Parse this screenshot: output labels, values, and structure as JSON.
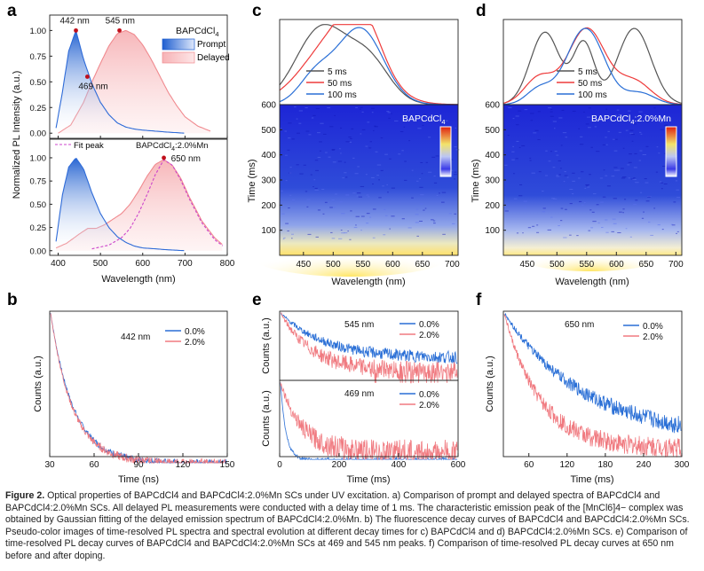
{
  "figure": {
    "panel_letters": {
      "a": "a",
      "b": "b",
      "c": "c",
      "d": "d",
      "e": "e",
      "f": "f"
    },
    "caption": {
      "label": "Figure 2.",
      "text": "Optical properties of BAPCdCl4 and BAPCdCl4:2.0%Mn SCs under UV excitation. a) Comparison of prompt and delayed spectra of BAPCdCl4 and BAPCdCl4:2.0%Mn SCs. All delayed PL measurements were conducted with a delay time of 1 ms. The characteristic emission peak of the [MnCl6]4− complex was obtained by Gaussian fitting of the delayed emission spectrum of BAPCdCl4:2.0%Mn. b) The fluorescence decay curves of BAPCdCl4 and BAPCdCl4:2.0%Mn SCs. Pseudo-color images of time-resolved PL spectra and spectral evolution at different decay times for c) BAPCdCl4 and d) BAPCdCl4:2.0%Mn SCs. e) Comparison of time-resolved PL decay curves of BAPCdCl4 and BAPCdCl4:2.0%Mn SCs at 469 and 545 nm peaks. f) Comparison of time-resolved PL decay curves at 650 nm before and after doping."
    }
  },
  "colors": {
    "prompt": "#2e6bd8",
    "delayed": "#f08a8f",
    "fit": "#cc44cc",
    "blue": "#2a6fd6",
    "red": "#ee3b3b",
    "gray": "#555555",
    "pink": "#f07a80",
    "deep_red": "#c0101b"
  },
  "chart_data": [
    {
      "id": "a",
      "type": "line",
      "ylabel": "Normalized PL Intensity (a.u.)",
      "xlabel": "Wavelength (nm)",
      "xlim": [
        380,
        800
      ],
      "xticks": [
        400,
        500,
        600,
        700,
        800
      ],
      "top": {
        "title": "BAPCdCl4",
        "ylim": [
          -0.05,
          1.15
        ],
        "yticks": [
          "0.00",
          "0.25",
          "0.50",
          "0.75",
          "1.00"
        ],
        "legend": [
          "Prompt",
          "Delayed"
        ],
        "annotations": [
          {
            "text": "442 nm",
            "x": 442,
            "y": 1.0
          },
          {
            "text": "545 nm",
            "x": 545,
            "y": 1.0
          },
          {
            "text": "469 nm",
            "x": 469,
            "y": 0.55
          }
        ],
        "series": [
          {
            "name": "Prompt",
            "x": [
              395,
              410,
              425,
              442,
              460,
              480,
              500,
              520,
              540,
              560,
              580,
              600,
              630,
              660,
              700
            ],
            "y": [
              0.05,
              0.4,
              0.8,
              1.0,
              0.72,
              0.48,
              0.3,
              0.18,
              0.1,
              0.06,
              0.04,
              0.03,
              0.02,
              0.01,
              0.0
            ]
          },
          {
            "name": "Delayed",
            "x": [
              400,
              430,
              460,
              480,
              500,
              520,
              540,
              560,
              580,
              600,
              620,
              640,
              660,
              680,
              700,
              730,
              760
            ],
            "y": [
              0.0,
              0.08,
              0.3,
              0.5,
              0.68,
              0.85,
              0.97,
              1.0,
              0.96,
              0.86,
              0.72,
              0.56,
              0.4,
              0.27,
              0.16,
              0.07,
              0.02
            ]
          }
        ]
      },
      "bottom": {
        "title": "BAPCdCl4:2.0%Mn",
        "ylim": [
          -0.05,
          1.2
        ],
        "yticks": [
          "0.00",
          "0.25",
          "0.50",
          "0.75",
          "1.00"
        ],
        "legend": [
          "Fit peak"
        ],
        "annotations": [
          {
            "text": "650 nm",
            "x": 650,
            "y": 1.0
          }
        ],
        "series": [
          {
            "name": "Prompt",
            "x": [
              395,
              410,
              425,
              442,
              460,
              480,
              500,
              520,
              540,
              560,
              580,
              600,
              630,
              660,
              700
            ],
            "y": [
              0.1,
              0.6,
              0.9,
              1.0,
              0.88,
              0.62,
              0.4,
              0.25,
              0.15,
              0.09,
              0.05,
              0.03,
              0.02,
              0.01,
              0.0
            ]
          },
          {
            "name": "Delayed",
            "x": [
              395,
              420,
              450,
              470,
              490,
              510,
              530,
              550,
              570,
              590,
              610,
              630,
              650,
              670,
              690,
              710,
              740,
              770,
              790
            ],
            "y": [
              0.03,
              0.08,
              0.18,
              0.24,
              0.24,
              0.28,
              0.34,
              0.4,
              0.5,
              0.64,
              0.8,
              0.93,
              0.98,
              0.92,
              0.78,
              0.58,
              0.32,
              0.14,
              0.06
            ]
          },
          {
            "name": "Fit peak",
            "x": [
              480,
              520,
              550,
              570,
              590,
              610,
              630,
              650,
              670,
              690,
              710,
              740,
              770,
              790
            ],
            "y": [
              0.02,
              0.06,
              0.14,
              0.24,
              0.4,
              0.6,
              0.82,
              0.98,
              0.92,
              0.76,
              0.56,
              0.3,
              0.12,
              0.05
            ]
          }
        ]
      }
    },
    {
      "id": "b",
      "type": "line",
      "xlabel": "Time (ns)",
      "ylabel": "Counts (a.u.)",
      "xlim": [
        30,
        150
      ],
      "xticks": [
        30,
        60,
        90,
        120,
        150
      ],
      "annotation": "442 nm",
      "series": [
        {
          "name": "0.0%",
          "tau": 15
        },
        {
          "name": "2.0%",
          "tau": 14.5
        }
      ]
    },
    {
      "id": "c",
      "type": "heatmap",
      "title": "BAPCdCl4",
      "xlabel": "Wavelength (nm)",
      "ylabel": "Time (ms)",
      "xlim": [
        410,
        710
      ],
      "ylim": [
        0,
        600
      ],
      "xticks": [
        450,
        500,
        550,
        600,
        650,
        700
      ],
      "yticks": [
        100,
        200,
        300,
        400,
        500,
        600
      ],
      "spectra": [
        {
          "name": "5 ms",
          "peaks": [
            {
              "c": 480,
              "w": 60,
              "a": 1.0
            },
            {
              "c": 560,
              "w": 50,
              "a": 0.55
            }
          ]
        },
        {
          "name": "50 ms",
          "peaks": [
            {
              "c": 510,
              "w": 80,
              "a": 0.9
            },
            {
              "c": 550,
              "w": 45,
              "a": 0.55
            }
          ]
        },
        {
          "name": "100 ms",
          "peaks": [
            {
              "c": 545,
              "w": 55,
              "a": 1.0
            },
            {
              "c": 470,
              "w": 40,
              "a": 0.35
            }
          ]
        }
      ],
      "legend": [
        "5 ms",
        "50 ms",
        "100 ms"
      ]
    },
    {
      "id": "d",
      "type": "heatmap",
      "title": "BAPCdCl4:2.0%Mn",
      "xlabel": "Wavelength (nm)",
      "ylabel": "Time (ms)",
      "xlim": [
        410,
        710
      ],
      "ylim": [
        0,
        600
      ],
      "xticks": [
        450,
        500,
        550,
        600,
        650,
        700
      ],
      "yticks": [
        100,
        200,
        300,
        400,
        500,
        600
      ],
      "spectra": [
        {
          "name": "5 ms",
          "peaks": [
            {
              "c": 480,
              "w": 35,
              "a": 0.95
            },
            {
              "c": 545,
              "w": 25,
              "a": 0.8
            },
            {
              "c": 630,
              "w": 40,
              "a": 1.0
            }
          ]
        },
        {
          "name": "50 ms",
          "peaks": [
            {
              "c": 550,
              "w": 45,
              "a": 1.0
            },
            {
              "c": 470,
              "w": 35,
              "a": 0.35
            },
            {
              "c": 630,
              "w": 40,
              "a": 0.3
            }
          ]
        },
        {
          "name": "100 ms",
          "peaks": [
            {
              "c": 548,
              "w": 45,
              "a": 1.0
            },
            {
              "c": 470,
              "w": 30,
              "a": 0.2
            },
            {
              "c": 640,
              "w": 35,
              "a": 0.15
            }
          ]
        }
      ],
      "legend": [
        "5 ms",
        "50 ms",
        "100 ms"
      ]
    },
    {
      "id": "e",
      "type": "line",
      "xlabel": "Time (ms)",
      "ylabel": "Counts (a.u.)",
      "xlim": [
        0,
        600
      ],
      "xticks": [
        0,
        200,
        400,
        600
      ],
      "top": {
        "annotation": "545 nm",
        "series": [
          {
            "name": "0.0%"
          },
          {
            "name": "2.0%"
          }
        ]
      },
      "bottom": {
        "annotation": "469 nm",
        "series": [
          {
            "name": "0.0%"
          },
          {
            "name": "2.0%"
          }
        ]
      }
    },
    {
      "id": "f",
      "type": "line",
      "xlabel": "Time (ms)",
      "ylabel": "Counts (a.u.)",
      "xlim": [
        20,
        300
      ],
      "xticks": [
        60,
        120,
        180,
        240,
        300
      ],
      "annotation": "650 nm",
      "series": [
        {
          "name": "0.0%"
        },
        {
          "name": "2.0%"
        }
      ]
    }
  ]
}
